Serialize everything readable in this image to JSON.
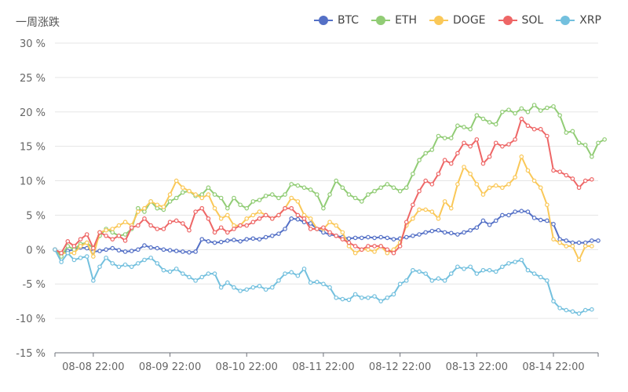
{
  "chart_data": {
    "type": "line",
    "title": "",
    "ylabel": "一周涨跌",
    "xlabel": "",
    "ylim": [
      -15,
      30
    ],
    "y_ticks": [
      30,
      25,
      20,
      15,
      10,
      5,
      0,
      -5,
      -10,
      -15
    ],
    "y_tick_labels": [
      "30 %",
      "25 %",
      "20 %",
      "15 %",
      "10 %",
      "5 %",
      "0 %",
      "-5 %",
      "-10 %",
      "-15 %"
    ],
    "x_ticks": [
      {
        "index": 6,
        "label": "08-08 22:00"
      },
      {
        "index": 18,
        "label": "08-09 22:00"
      },
      {
        "index": 30,
        "label": "08-10 22:00"
      },
      {
        "index": 42,
        "label": "08-11 22:00"
      },
      {
        "index": 54,
        "label": "08-12 22:00"
      },
      {
        "index": 66,
        "label": "08-13 22:00"
      },
      {
        "index": 78,
        "label": "08-14 22:00"
      }
    ],
    "grid": true,
    "legend_position": "top-right",
    "series": [
      {
        "name": "BTC",
        "color": "#5470c6",
        "values": [
          0,
          -0.5,
          -0.2,
          0,
          0.3,
          0.2,
          -0.3,
          -0.2,
          0,
          0.2,
          -0.1,
          -0.3,
          -0.2,
          0,
          0.6,
          0.3,
          0.2,
          0,
          -0.1,
          -0.2,
          -0.3,
          -0.4,
          -0.3,
          1.5,
          1.2,
          1,
          1.1,
          1.3,
          1.4,
          1.2,
          1.5,
          1.6,
          1.5,
          1.8,
          2,
          2.3,
          3,
          4.5,
          4.4,
          4,
          3.8,
          3,
          2.5,
          2.2,
          2,
          1.8,
          1.6,
          1.7,
          1.7,
          1.8,
          1.7,
          1.8,
          1.7,
          1.5,
          1.6,
          1.8,
          2,
          2.2,
          2.5,
          2.7,
          2.8,
          2.5,
          2.4,
          2.2,
          2.5,
          2.8,
          3.2,
          4.2,
          3.6,
          4.2,
          5,
          5,
          5.5,
          5.6,
          5.5,
          4.6,
          4.3,
          4.2,
          3.7,
          1.5,
          1.3,
          1,
          1,
          1,
          1.3,
          1.3
        ]
      },
      {
        "name": "ETH",
        "color": "#91cc75",
        "values": [
          0,
          -1,
          0.5,
          0,
          0.8,
          1,
          0.2,
          2,
          3,
          2.5,
          2,
          2.2,
          3,
          6,
          5.5,
          7,
          6,
          5.8,
          7,
          7.5,
          8.3,
          8.5,
          7.8,
          8,
          9,
          8,
          7.5,
          6,
          7.5,
          6.5,
          6,
          7,
          7.2,
          7.8,
          8,
          7.5,
          8,
          9.5,
          9.3,
          9,
          8.7,
          8,
          6,
          8,
          10,
          9,
          8,
          7.5,
          7,
          8,
          8.5,
          9,
          9.5,
          9,
          8.5,
          9,
          11,
          13,
          14,
          14.5,
          16.5,
          16.2,
          16.2,
          18,
          17.8,
          17.5,
          19.5,
          19,
          18.5,
          18.2,
          20,
          20.3,
          19.8,
          20.5,
          20,
          21,
          20.2,
          20.6,
          20.8,
          19.5,
          17,
          17.2,
          15.5,
          15.2,
          13.5,
          15.5,
          16
        ]
      },
      {
        "name": "DOGE",
        "color": "#fac858",
        "values": [
          0,
          -0.5,
          -0.5,
          -0.5,
          0.5,
          1,
          -1,
          2.5,
          2.8,
          3,
          3.5,
          4,
          3.5,
          5.5,
          6,
          7,
          6.5,
          6.2,
          8,
          10,
          9,
          8.5,
          8,
          7.5,
          8,
          6,
          4.5,
          5,
          3.5,
          3.5,
          4.5,
          5,
          5.5,
          5,
          4.5,
          5,
          6,
          7.5,
          7,
          5,
          4.5,
          3,
          3,
          4,
          3.5,
          2.5,
          0.5,
          -0.5,
          0,
          0,
          -0.3,
          0.5,
          -0.5,
          0,
          1,
          3.5,
          4.5,
          5.8,
          5.8,
          5.5,
          4.5,
          7,
          6,
          9.5,
          12,
          11,
          9.5,
          8,
          9,
          9.3,
          9,
          9.5,
          10.5,
          13.5,
          11.5,
          10,
          9,
          6.5,
          1.5,
          1,
          0.5,
          0.5,
          -1.5,
          0.5,
          0.5
        ]
      },
      {
        "name": "SOL",
        "color": "#ee6666",
        "values": [
          0,
          -0.5,
          1.2,
          0.5,
          1.5,
          2.2,
          0.2,
          2.5,
          2,
          1.5,
          2,
          1.3,
          3.2,
          3.5,
          4.5,
          3.5,
          3,
          3,
          4,
          4.2,
          3.8,
          2.8,
          5.5,
          6,
          4.5,
          2.5,
          3.2,
          2.5,
          3,
          3.5,
          3.5,
          4,
          4.5,
          5,
          4.5,
          5,
          6,
          6,
          5,
          4.5,
          3,
          3,
          3.2,
          2.5,
          2,
          1.5,
          1,
          0.5,
          0,
          0.5,
          0.5,
          0.5,
          0,
          -0.5,
          0.5,
          4,
          6.5,
          8.5,
          10,
          9.5,
          11,
          13,
          12.5,
          14,
          15.5,
          15,
          16,
          12.5,
          13.5,
          15.5,
          15,
          15.3,
          16,
          19,
          18,
          17.5,
          17.5,
          16.5,
          11.5,
          11.3,
          10.8,
          10.3,
          9,
          10,
          10.2
        ]
      },
      {
        "name": "XRP",
        "color": "#73c0de",
        "values": [
          0,
          -1.8,
          -0.5,
          -1.5,
          -1.2,
          -1,
          -4.5,
          -2.5,
          -1.2,
          -2,
          -2.5,
          -2.2,
          -2.5,
          -2,
          -1.5,
          -1.2,
          -2,
          -3,
          -3.2,
          -2.8,
          -3.5,
          -4,
          -4.5,
          -4,
          -3.5,
          -3.5,
          -5.5,
          -4.8,
          -5.5,
          -6,
          -5.8,
          -5.5,
          -5.3,
          -5.8,
          -5.5,
          -4.5,
          -3.5,
          -3.3,
          -3.8,
          -2.8,
          -4.8,
          -4.7,
          -5,
          -5.5,
          -7,
          -7.2,
          -7.3,
          -6.5,
          -7,
          -7,
          -6.8,
          -7.5,
          -7,
          -6.5,
          -5,
          -4.5,
          -3,
          -3.2,
          -3.5,
          -4.5,
          -4.2,
          -4.5,
          -3.5,
          -2.5,
          -2.8,
          -2.5,
          -3.5,
          -3,
          -3,
          -3.2,
          -2.5,
          -2,
          -1.8,
          -1.5,
          -3,
          -3.5,
          -4,
          -4.5,
          -7.5,
          -8.5,
          -8.8,
          -9,
          -9.3,
          -8.8,
          -8.7
        ]
      }
    ]
  }
}
